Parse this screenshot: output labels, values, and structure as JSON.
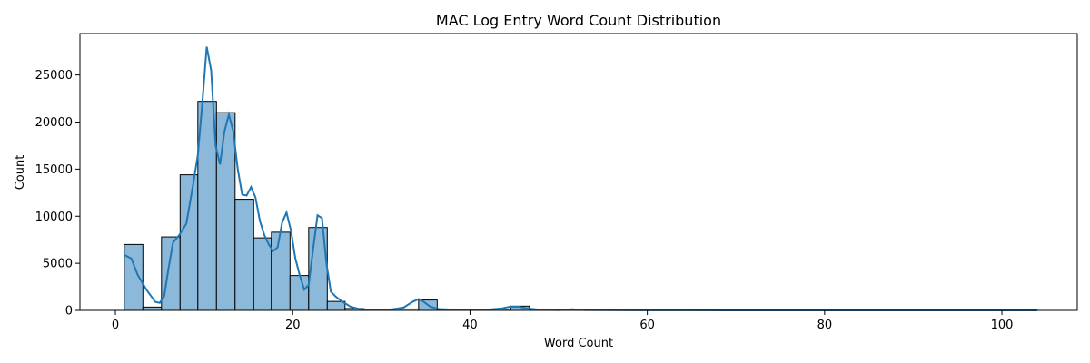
{
  "chart_data": {
    "type": "bar",
    "title": "MAC Log Entry Word Count Distribution",
    "xlabel": "Word Count",
    "ylabel": "Count",
    "xlim": [
      -4,
      108.5
    ],
    "ylim": [
      0,
      29400
    ],
    "x_ticks": [
      0,
      20,
      40,
      60,
      80,
      100
    ],
    "y_ticks": [
      0,
      5000,
      10000,
      15000,
      20000,
      25000
    ],
    "grid": false,
    "bar_color": "#8cb8d9",
    "edge_color": "#000000",
    "kde_color": "#1f77b4",
    "bins": [
      {
        "x0": 1.0,
        "x1": 3.1,
        "count": 7000
      },
      {
        "x0": 3.1,
        "x1": 5.2,
        "count": 350
      },
      {
        "x0": 5.2,
        "x1": 7.3,
        "count": 7800
      },
      {
        "x0": 7.3,
        "x1": 9.3,
        "count": 14400
      },
      {
        "x0": 9.3,
        "x1": 11.4,
        "count": 22200
      },
      {
        "x0": 11.4,
        "x1": 13.5,
        "count": 21000
      },
      {
        "x0": 13.5,
        "x1": 15.6,
        "count": 11800
      },
      {
        "x0": 15.6,
        "x1": 17.6,
        "count": 7700
      },
      {
        "x0": 17.6,
        "x1": 19.7,
        "count": 8300
      },
      {
        "x0": 19.7,
        "x1": 21.8,
        "count": 3700
      },
      {
        "x0": 21.8,
        "x1": 23.9,
        "count": 8800
      },
      {
        "x0": 23.9,
        "x1": 25.9,
        "count": 950
      },
      {
        "x0": 25.9,
        "x1": 28.0,
        "count": 200
      },
      {
        "x0": 28.0,
        "x1": 30.1,
        "count": 30
      },
      {
        "x0": 30.1,
        "x1": 32.2,
        "count": 20
      },
      {
        "x0": 32.2,
        "x1": 34.2,
        "count": 150
      },
      {
        "x0": 34.2,
        "x1": 36.3,
        "count": 1100
      },
      {
        "x0": 36.3,
        "x1": 38.4,
        "count": 30
      },
      {
        "x0": 38.4,
        "x1": 40.5,
        "count": 20
      },
      {
        "x0": 40.5,
        "x1": 42.5,
        "count": 20
      },
      {
        "x0": 42.5,
        "x1": 44.6,
        "count": 20
      },
      {
        "x0": 44.6,
        "x1": 46.7,
        "count": 450
      },
      {
        "x0": 46.7,
        "x1": 48.8,
        "count": 20
      },
      {
        "x0": 48.8,
        "x1": 50.8,
        "count": 20
      },
      {
        "x0": 50.8,
        "x1": 52.9,
        "count": 50
      },
      {
        "x0": 52.9,
        "x1": 55.0,
        "count": 10
      }
    ],
    "kde": {
      "x": [
        1,
        1.8,
        2.5,
        3.5,
        4.5,
        5.0,
        5.5,
        6.0,
        6.5,
        7.2,
        8.0,
        8.7,
        9.3,
        9.8,
        10.3,
        10.8,
        11.3,
        11.8,
        12.3,
        12.8,
        13.3,
        13.8,
        14.3,
        14.8,
        15.3,
        15.8,
        16.3,
        16.8,
        17.3,
        17.8,
        18.3,
        18.8,
        19.3,
        19.8,
        20.3,
        20.8,
        21.3,
        21.8,
        22.3,
        22.8,
        23.3,
        23.8,
        24.3,
        24.8,
        25.5,
        26.5,
        27.5,
        29.0,
        31.0,
        32.5,
        33.5,
        34.2,
        34.8,
        35.5,
        36.5,
        38.0,
        40.0,
        42.0,
        43.5,
        44.5,
        45.5,
        46.5,
        48.0,
        50.0,
        51.5,
        53.0,
        56.0,
        60.0,
        70.0,
        80.0,
        90.0,
        100.0,
        104.0
      ],
      "y": [
        5900,
        5500,
        3800,
        2200,
        900,
        800,
        1500,
        4500,
        7200,
        8000,
        9200,
        13000,
        16500,
        22000,
        28000,
        25500,
        17500,
        15500,
        19000,
        20800,
        19000,
        15000,
        12300,
        12200,
        13100,
        12000,
        9500,
        8000,
        7000,
        6300,
        6700,
        9300,
        10400,
        8500,
        5500,
        3700,
        2200,
        2700,
        6500,
        10100,
        9800,
        5000,
        2000,
        1500,
        1000,
        400,
        150,
        60,
        80,
        300,
        900,
        1200,
        900,
        400,
        150,
        80,
        60,
        80,
        200,
        380,
        380,
        200,
        60,
        40,
        120,
        40,
        20,
        10,
        5,
        5,
        5,
        5,
        5
      ]
    }
  }
}
